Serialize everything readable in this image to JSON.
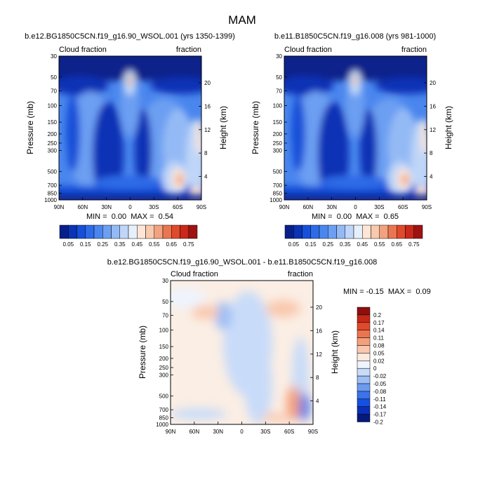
{
  "figure": {
    "title": "MAM"
  },
  "colors": {
    "seq": [
      "#08208a",
      "#0a33b5",
      "#1750d8",
      "#2e6be6",
      "#4a86ee",
      "#6c9ff2",
      "#94baf5",
      "#bfd6f8",
      "#e6f0fc",
      "#fde6d6",
      "#f8c9ae",
      "#f2a27f",
      "#ea7552",
      "#df4a2d",
      "#c9281b",
      "#9e1212",
      "#7a0a0a"
    ],
    "div": [
      "#051a7a",
      "#0a2fb8",
      "#1650e0",
      "#3a73ea",
      "#6c9bf0",
      "#9cbef5",
      "#c8dbf9",
      "#eef4fd",
      "#fde9de",
      "#f9c7ad",
      "#f3a07b",
      "#ec7550",
      "#e04a2a",
      "#c42818",
      "#8f0f0f"
    ]
  },
  "chart_data": [
    {
      "type": "heatmap",
      "id": "panel1",
      "title": "b.e12.BG1850C5CN.f19_g16.90_WSOL.001 (yrs 1350-1399)",
      "left_label": "Cloud fraction",
      "right_label": "fraction",
      "xlabel": "",
      "ylabel": "Pressure (mb)",
      "ylabel_right": "Height (km)",
      "x_ticks": [
        "90N",
        "60N",
        "30N",
        "0",
        "30S",
        "60S",
        "90S"
      ],
      "y_ticks": [
        "30",
        "50",
        "70",
        "100",
        "150",
        "200",
        "250",
        "300",
        "500",
        "700",
        "850",
        "1000"
      ],
      "y_right_ticks": [
        "20",
        "16",
        "12",
        "8",
        "4"
      ],
      "stats": "MIN =  0.00  MAX =  0.54",
      "min": 0.0,
      "max": 0.54
    },
    {
      "type": "heatmap",
      "id": "panel2",
      "title": "b.e11.B1850C5CN.f19_g16.008 (yrs 981-1000)",
      "left_label": "Cloud fraction",
      "right_label": "fraction",
      "xlabel": "",
      "ylabel": "Pressure (mb)",
      "ylabel_right": "Height (km)",
      "x_ticks": [
        "90N",
        "60N",
        "30N",
        "0",
        "30S",
        "60S",
        "90S"
      ],
      "y_ticks": [
        "30",
        "50",
        "70",
        "100",
        "150",
        "200",
        "250",
        "300",
        "500",
        "700",
        "850",
        "1000"
      ],
      "y_right_ticks": [
        "20",
        "16",
        "12",
        "8",
        "4"
      ],
      "stats": "MIN =  0.00  MAX =  0.65",
      "min": 0.0,
      "max": 0.65
    },
    {
      "type": "heatmap",
      "id": "panel3",
      "title": "b.e12.BG1850C5CN.f19_g16.90_WSOL.001 - b.e11.B1850C5CN.f19_g16.008",
      "left_label": "Cloud fraction",
      "right_label": "fraction",
      "xlabel": "",
      "ylabel": "Pressure (mb)",
      "ylabel_right": "Height (km)",
      "x_ticks": [
        "90N",
        "60N",
        "30N",
        "0",
        "30S",
        "60S",
        "90S"
      ],
      "y_ticks": [
        "30",
        "50",
        "70",
        "100",
        "150",
        "200",
        "250",
        "300",
        "500",
        "700",
        "850",
        "1000"
      ],
      "y_right_ticks": [
        "20",
        "16",
        "12",
        "8",
        "4"
      ],
      "stats": "MIN = -0.15  MAX =  0.09",
      "min": -0.15,
      "max": 0.09
    }
  ],
  "colorbar_seq": {
    "orientation": "horizontal",
    "labels": [
      "0.05",
      "0.15",
      "0.25",
      "0.35",
      "0.45",
      "0.55",
      "0.65",
      "0.75"
    ]
  },
  "colorbar_div": {
    "orientation": "vertical",
    "labels": [
      "0.2",
      "0.17",
      "0.14",
      "0.11",
      "0.08",
      "0.05",
      "0.02",
      "0",
      "-0.02",
      "-0.05",
      "-0.08",
      "-0.11",
      "-0.14",
      "-0.17",
      "-0.2"
    ]
  }
}
